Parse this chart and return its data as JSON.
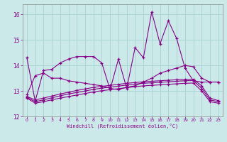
{
  "xlabel": "Windchill (Refroidissement éolien,°C)",
  "background_color": "#cce9e9",
  "grid_color": "#aad4d4",
  "line_color": "#880088",
  "xlim": [
    -0.5,
    23.5
  ],
  "ylim": [
    12.0,
    16.4
  ],
  "yticks": [
    12,
    13,
    14,
    15,
    16
  ],
  "xticks": [
    0,
    1,
    2,
    3,
    4,
    5,
    6,
    7,
    8,
    9,
    10,
    11,
    12,
    13,
    14,
    15,
    16,
    17,
    18,
    19,
    20,
    21,
    22,
    23
  ],
  "series": [
    {
      "x": [
        0,
        1,
        2,
        3,
        4,
        5,
        6,
        7,
        8,
        9,
        10,
        11,
        12,
        13,
        14,
        15,
        16,
        17,
        18,
        19,
        20,
        21,
        22,
        23
      ],
      "y": [
        14.3,
        12.6,
        13.8,
        13.85,
        14.1,
        14.25,
        14.35,
        14.35,
        14.35,
        14.1,
        13.05,
        14.25,
        13.1,
        14.7,
        14.3,
        16.1,
        14.85,
        15.75,
        15.05,
        13.9,
        13.4,
        13.35,
        13.35,
        13.35
      ]
    },
    {
      "x": [
        0,
        1,
        2,
        3,
        4,
        5,
        6,
        7,
        8,
        9,
        10,
        11,
        12,
        13,
        14,
        15,
        16,
        17,
        18,
        19,
        20,
        21,
        22,
        23
      ],
      "y": [
        12.85,
        13.6,
        13.7,
        13.5,
        13.5,
        13.4,
        13.35,
        13.3,
        13.25,
        13.2,
        13.1,
        13.05,
        13.15,
        13.2,
        13.35,
        13.5,
        13.7,
        13.8,
        13.9,
        14.0,
        13.95,
        13.5,
        13.35,
        13.35
      ]
    },
    {
      "x": [
        0,
        1,
        2,
        3,
        4,
        5,
        6,
        7,
        8,
        9,
        10,
        11,
        12,
        13,
        14,
        15,
        16,
        17,
        18,
        19,
        20,
        21,
        22,
        23
      ],
      "y": [
        12.78,
        12.65,
        12.72,
        12.8,
        12.88,
        12.95,
        13.02,
        13.08,
        13.14,
        13.18,
        13.22,
        13.26,
        13.3,
        13.33,
        13.36,
        13.38,
        13.4,
        13.42,
        13.44,
        13.45,
        13.46,
        13.2,
        12.72,
        12.62
      ]
    },
    {
      "x": [
        0,
        1,
        2,
        3,
        4,
        5,
        6,
        7,
        8,
        9,
        10,
        11,
        12,
        13,
        14,
        15,
        16,
        17,
        18,
        19,
        20,
        21,
        22,
        23
      ],
      "y": [
        12.75,
        12.58,
        12.65,
        12.73,
        12.81,
        12.88,
        12.94,
        13.0,
        13.06,
        13.11,
        13.15,
        13.19,
        13.23,
        13.27,
        13.3,
        13.32,
        13.34,
        13.36,
        13.38,
        13.4,
        13.41,
        13.1,
        12.65,
        12.58
      ]
    },
    {
      "x": [
        0,
        1,
        2,
        3,
        4,
        5,
        6,
        7,
        8,
        9,
        10,
        11,
        12,
        13,
        14,
        15,
        16,
        17,
        18,
        19,
        20,
        21,
        22,
        23
      ],
      "y": [
        12.72,
        12.52,
        12.58,
        12.65,
        12.72,
        12.78,
        12.84,
        12.9,
        12.96,
        13.01,
        13.05,
        13.09,
        13.13,
        13.17,
        13.2,
        13.22,
        13.24,
        13.26,
        13.28,
        13.3,
        13.31,
        13.0,
        12.58,
        12.52
      ]
    }
  ]
}
